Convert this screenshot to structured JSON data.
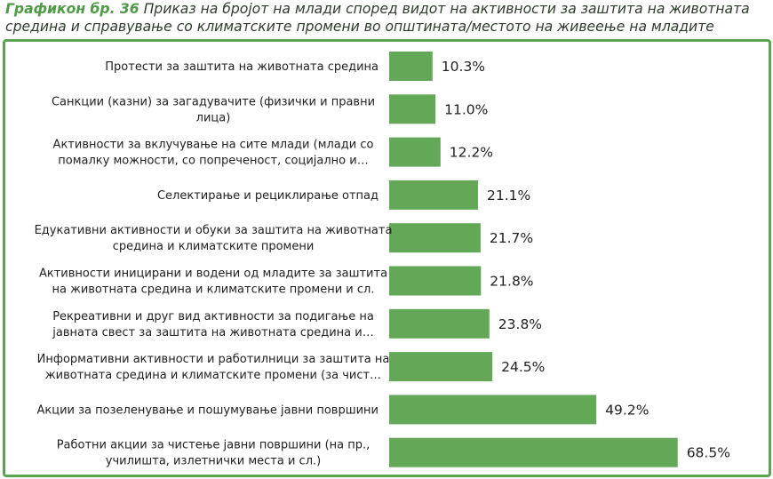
{
  "figure": {
    "title_lead": "Графикон бр. 36",
    "title_text": " Приказ на бројот на млади според видот на активности за заштита на животната средина и справување со климатските промени во општината/местото на живеење на младите"
  },
  "colors": {
    "bar": "#62a856",
    "border": "#5aa450",
    "title_lead": "#4f9a46"
  },
  "chart_data": {
    "type": "bar",
    "orientation": "horizontal",
    "categories": [
      [
        "Протести за заштита на животната средина"
      ],
      [
        "Санкции (казни) за загадувачите (физички и правни",
        "лица)"
      ],
      [
        "Активности за вклучување на сите млади (млади со",
        "помалку можности, со попреченост, социјално и…"
      ],
      [
        "Селектирање и рециклирање отпад"
      ],
      [
        "Едукативни активности и обуки за заштита на животната",
        "средина и климатските промени"
      ],
      [
        "Активности иницирани и водени од младите за заштита",
        "на животната средина и климатските промени и сл."
      ],
      [
        "Рекреативни и друг вид активности за подигање на",
        "јавната свест за заштита на животната средина и…"
      ],
      [
        "Информативни активности и работилници за заштита на",
        "животната средина и климатските промени (за чист…"
      ],
      [
        "Акции за позеленување и пошумување јавни површини"
      ],
      [
        "Работни акции за чистење јавни површини (на пр.,",
        "училишта, излетнички места и сл.)"
      ]
    ],
    "values": [
      10.3,
      11.0,
      12.2,
      21.1,
      21.7,
      21.8,
      23.8,
      24.5,
      49.2,
      68.5
    ],
    "value_labels": [
      "10.3%",
      "11.0%",
      "12.2%",
      "21.1%",
      "21.7%",
      "21.8%",
      "23.8%",
      "24.5%",
      "49.2%",
      "68.5%"
    ],
    "unit": "%",
    "xlim": [
      0,
      70
    ],
    "grid": false,
    "legend": "none"
  }
}
